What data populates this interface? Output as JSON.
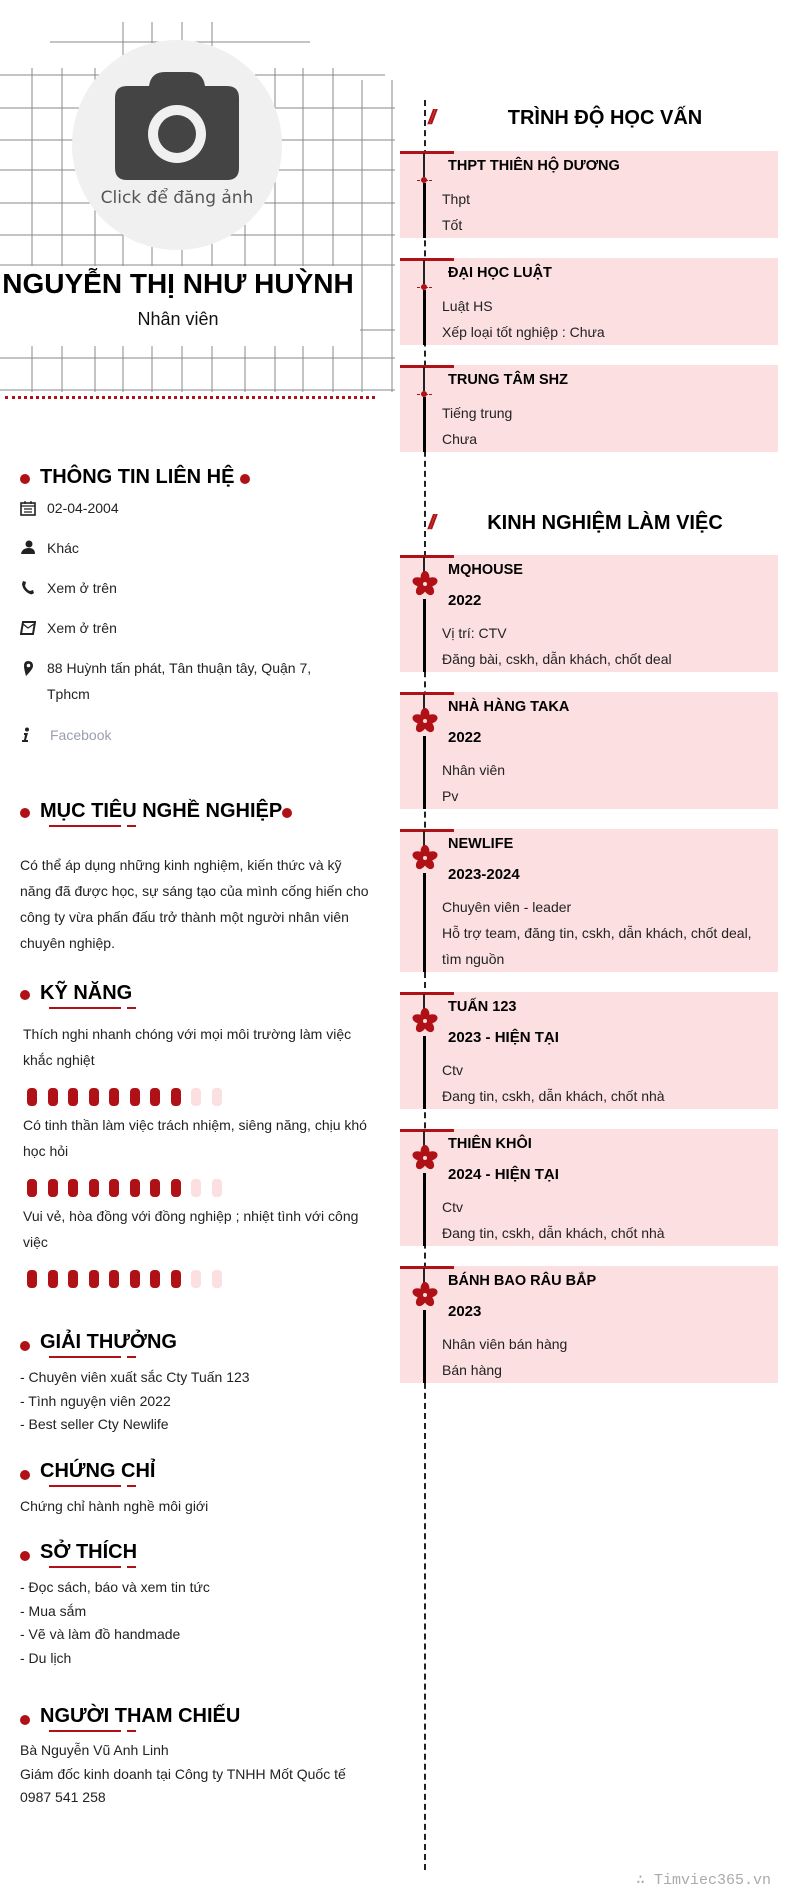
{
  "profile": {
    "avatar_label": "Click để đăng ảnh",
    "name": "NGUYỄN THỊ NHƯ HUỲNH",
    "role": "Nhân viên"
  },
  "contact": {
    "title": "THÔNG TIN LIÊN HỆ",
    "birthday": "02-04-2004",
    "gender": "Khác",
    "phone": "Xem ở trên",
    "email": "Xem ở trên",
    "address": "88 Huỳnh tấn phát, Tân thuận tây, Quận 7, Tphcm",
    "website": "Facebook",
    "icons": [
      "calendar-icon",
      "user-icon",
      "phone-icon",
      "envelope-icon",
      "map-pin-icon",
      "info-icon"
    ]
  },
  "objective": {
    "title": "MỤC TIÊU NGHỀ NGHIỆP",
    "text": "Có thể áp dụng những kinh nghiệm, kiến thức và kỹ năng đã được học, sự sáng tạo của mình cống hiến cho công ty vừa phấn đấu trở thành một người nhân viên chuyên nghiệp."
  },
  "skills": {
    "title": "KỸ NĂNG",
    "scale_max": 10,
    "items": [
      {
        "name": "Thích nghi nhanh chóng với mọi môi trường làm việc khắc nghiệt",
        "level": 8
      },
      {
        "name": "Có tinh thần làm việc trách nhiệm, siêng năng, chịu khó học hỏi",
        "level": 8
      },
      {
        "name": "Vui vẻ, hòa đồng với đồng nghiệp ; nhiệt tình với công việc",
        "level": 8
      }
    ]
  },
  "awards": {
    "title": "GIẢI THƯỞNG",
    "items": [
      "- Chuyên viên xuất sắc Cty Tuấn 123",
      "- Tình nguyện viên 2022",
      "- Best seller Cty Newlife"
    ]
  },
  "certificates": {
    "title": "CHỨNG CHỈ",
    "items": [
      "Chứng chỉ hành nghề môi giới"
    ]
  },
  "hobbies": {
    "title": "SỞ THÍCH",
    "items": [
      "- Đọc sách, báo và xem tin tức",
      "- Mua sắm",
      "- Vẽ và làm đồ handmade",
      "- Du lịch"
    ]
  },
  "references": {
    "title": "NGƯỜI THAM CHIẾU",
    "items": [
      "Bà Nguyễn Vũ Anh Linh",
      "Giám đốc kinh doanh tại Công ty TNHH Mốt Quốc tế",
      "0987 541 258"
    ]
  },
  "education": {
    "slash": "//",
    "title": "TRÌNH ĐỘ HỌC VẤN",
    "items": [
      {
        "school": "THPT THIÊN HỘ DƯƠNG",
        "major": "Thpt",
        "result": "Tốt"
      },
      {
        "school": "ĐẠI HỌC LUẬT",
        "major": "Luật HS",
        "result": "Xếp loại tốt nghiệp : Chưa"
      },
      {
        "school": "TRUNG TÂM SHZ",
        "major": "Tiếng trung",
        "result": "Chưa"
      }
    ]
  },
  "experience": {
    "slash": "//",
    "title": "KINH NGHIỆM LÀM VIỆC",
    "items": [
      {
        "company": "MQHOUSE",
        "time": "2022",
        "position": "Vị trí: CTV",
        "desc": "Đăng bài, cskh, dẫn khách, chốt deal"
      },
      {
        "company": "NHÀ HÀNG TAKA",
        "time": "2022",
        "position": "Nhân viên",
        "desc": "Pv"
      },
      {
        "company": "NEWLIFE",
        "time": "2023-2024",
        "position": "Chuyên viên - leader",
        "desc": "Hỗ trợ team, đăng tin, cskh, dẫn khách, chốt deal, tìm nguồn"
      },
      {
        "company": "TUẤN 123",
        "time": "2023 - HIỆN TẠI",
        "position": "Ctv",
        "desc": "Đang tin, cskh, dẫn khách, chốt nhà"
      },
      {
        "company": "THIÊN KHÔI",
        "time": "2024 - HIỆN TẠI",
        "position": "Ctv",
        "desc": "Đang tin, cskh, dẫn khách, chốt nhà"
      },
      {
        "company": "BÁNH BAO RÂU BẮP",
        "time": "2023",
        "position": "Nhân viên bán hàng",
        "desc": "Bán hàng"
      }
    ]
  },
  "watermark": "∴ Timviec365.vn",
  "colors": {
    "accent": "#b01116",
    "box_bg": "#fcdfe1",
    "avatar_bg": "#f0f0f0"
  }
}
